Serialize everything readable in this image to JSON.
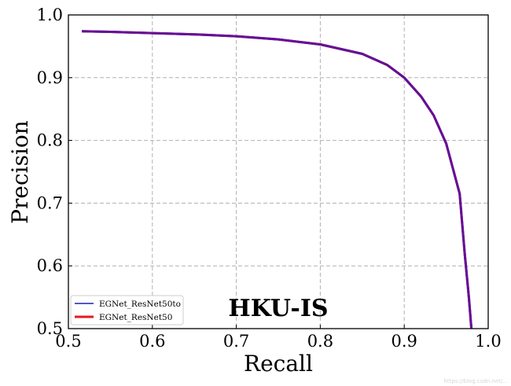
{
  "chart_data": {
    "type": "line",
    "title": "HKU-IS",
    "xlabel": "Recall",
    "ylabel": "Precision",
    "xlim": [
      0.5,
      1.0
    ],
    "ylim": [
      0.5,
      1.0
    ],
    "xticks": [
      "0.5",
      "0.6",
      "0.7",
      "0.8",
      "0.9",
      "1.0"
    ],
    "yticks": [
      "0.5",
      "0.6",
      "0.7",
      "0.8",
      "0.9",
      "1.0"
    ],
    "grid": true,
    "grid_style": "dashed",
    "legend_position": "lower-left",
    "series": [
      {
        "name": "EGNet_ResNet50to",
        "color": "#1f1fb4",
        "x": [
          0.516,
          0.55,
          0.6,
          0.65,
          0.7,
          0.75,
          0.8,
          0.85,
          0.88,
          0.9,
          0.92,
          0.935,
          0.95,
          0.96,
          0.966,
          0.972,
          0.977,
          0.98
        ],
        "y": [
          0.974,
          0.973,
          0.971,
          0.969,
          0.966,
          0.961,
          0.953,
          0.938,
          0.92,
          0.9,
          0.87,
          0.84,
          0.795,
          0.745,
          0.715,
          0.62,
          0.55,
          0.5
        ]
      },
      {
        "name": "EGNet_ResNet50",
        "color": "#e31a1c",
        "x": [
          0.516,
          0.55,
          0.6,
          0.65,
          0.7,
          0.75,
          0.8,
          0.85,
          0.88,
          0.9,
          0.92,
          0.935,
          0.95,
          0.96,
          0.966,
          0.972,
          0.977,
          0.98
        ],
        "y": [
          0.974,
          0.973,
          0.971,
          0.969,
          0.966,
          0.961,
          0.953,
          0.938,
          0.92,
          0.9,
          0.87,
          0.84,
          0.795,
          0.745,
          0.715,
          0.62,
          0.55,
          0.5
        ]
      }
    ],
    "overlap_color": "#6a0d91",
    "watermark": "https://blog.csdn.net/..."
  }
}
